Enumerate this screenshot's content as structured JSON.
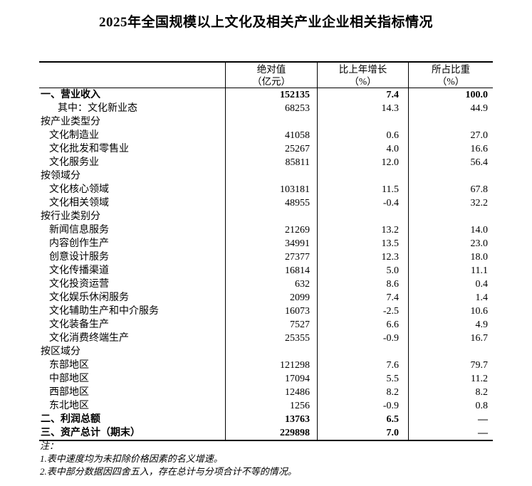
{
  "title": "2025年全国规模以上文化及相关产业企业相关指标情况",
  "table": {
    "columns": [
      {
        "line1": "绝对值",
        "line2": "（亿元）"
      },
      {
        "line1": "比上年增长",
        "line2": "（%）"
      },
      {
        "line1": "所占比重",
        "line2": "（%）"
      }
    ],
    "rows": [
      {
        "label": "一、营业收入",
        "indent": 0,
        "bold": true,
        "values": [
          "152135",
          "7.4",
          "100.0"
        ]
      },
      {
        "label": "其中：文化新业态",
        "indent": 2,
        "bold": false,
        "values": [
          "68253",
          "14.3",
          "44.9"
        ]
      },
      {
        "label": "按产业类型分",
        "indent": 0,
        "bold": false,
        "values": [
          "",
          "",
          ""
        ]
      },
      {
        "label": "文化制造业",
        "indent": 1,
        "bold": false,
        "values": [
          "41058",
          "0.6",
          "27.0"
        ]
      },
      {
        "label": "文化批发和零售业",
        "indent": 1,
        "bold": false,
        "values": [
          "25267",
          "4.0",
          "16.6"
        ]
      },
      {
        "label": "文化服务业",
        "indent": 1,
        "bold": false,
        "values": [
          "85811",
          "12.0",
          "56.4"
        ]
      },
      {
        "label": "按领域分",
        "indent": 0,
        "bold": false,
        "values": [
          "",
          "",
          ""
        ]
      },
      {
        "label": "文化核心领域",
        "indent": 1,
        "bold": false,
        "values": [
          "103181",
          "11.5",
          "67.8"
        ]
      },
      {
        "label": "文化相关领域",
        "indent": 1,
        "bold": false,
        "values": [
          "48955",
          "-0.4",
          "32.2"
        ]
      },
      {
        "label": "按行业类别分",
        "indent": 0,
        "bold": false,
        "values": [
          "",
          "",
          ""
        ]
      },
      {
        "label": "新闻信息服务",
        "indent": 1,
        "bold": false,
        "values": [
          "21269",
          "13.2",
          "14.0"
        ]
      },
      {
        "label": "内容创作生产",
        "indent": 1,
        "bold": false,
        "values": [
          "34991",
          "13.5",
          "23.0"
        ]
      },
      {
        "label": "创意设计服务",
        "indent": 1,
        "bold": false,
        "values": [
          "27377",
          "12.3",
          "18.0"
        ]
      },
      {
        "label": "文化传播渠道",
        "indent": 1,
        "bold": false,
        "values": [
          "16814",
          "5.0",
          "11.1"
        ]
      },
      {
        "label": "文化投资运营",
        "indent": 1,
        "bold": false,
        "values": [
          "632",
          "8.6",
          "0.4"
        ]
      },
      {
        "label": "文化娱乐休闲服务",
        "indent": 1,
        "bold": false,
        "values": [
          "2099",
          "7.4",
          "1.4"
        ]
      },
      {
        "label": "文化辅助生产和中介服务",
        "indent": 1,
        "bold": false,
        "values": [
          "16073",
          "-2.5",
          "10.6"
        ]
      },
      {
        "label": "文化装备生产",
        "indent": 1,
        "bold": false,
        "values": [
          "7527",
          "6.6",
          "4.9"
        ]
      },
      {
        "label": "文化消费终端生产",
        "indent": 1,
        "bold": false,
        "values": [
          "25355",
          "-0.9",
          "16.7"
        ]
      },
      {
        "label": "按区域分",
        "indent": 0,
        "bold": false,
        "values": [
          "",
          "",
          ""
        ]
      },
      {
        "label": "东部地区",
        "indent": 1,
        "bold": false,
        "values": [
          "121298",
          "7.6",
          "79.7"
        ]
      },
      {
        "label": "中部地区",
        "indent": 1,
        "bold": false,
        "values": [
          "17094",
          "5.5",
          "11.2"
        ]
      },
      {
        "label": "西部地区",
        "indent": 1,
        "bold": false,
        "values": [
          "12486",
          "8.2",
          "8.2"
        ]
      },
      {
        "label": "东北地区",
        "indent": 1,
        "bold": false,
        "values": [
          "1256",
          "-0.9",
          "0.8"
        ]
      },
      {
        "label": "二、利润总额",
        "indent": 0,
        "bold": true,
        "values": [
          "13763",
          "6.5",
          "—"
        ]
      },
      {
        "label": "三、资产总计（期末）",
        "indent": 0,
        "bold": true,
        "values": [
          "229898",
          "7.0",
          "—"
        ]
      }
    ]
  },
  "notes": {
    "heading": "注：",
    "items": [
      "1.表中速度均为未扣除价格因素的名义增速。",
      "2.表中部分数据因四舍五入，存在总计与分项合计不等的情况。"
    ]
  }
}
